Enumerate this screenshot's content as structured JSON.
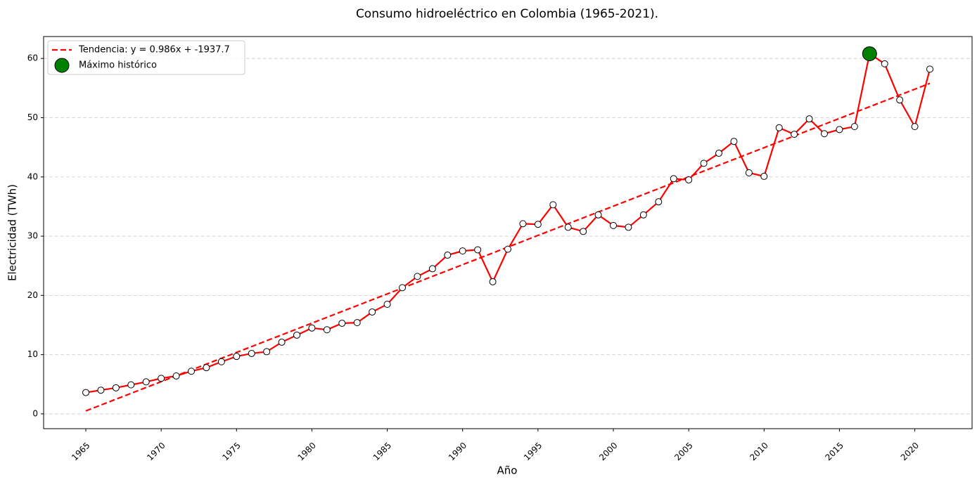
{
  "chart_data": {
    "type": "line",
    "title": "Consumo hidroeléctrico en Colombia (1965-2021).",
    "xlabel": "Año",
    "ylabel": "Electricidad (TWh)",
    "x": [
      1965,
      1966,
      1967,
      1968,
      1969,
      1970,
      1971,
      1972,
      1973,
      1974,
      1975,
      1976,
      1977,
      1978,
      1979,
      1980,
      1981,
      1982,
      1983,
      1984,
      1985,
      1986,
      1987,
      1988,
      1989,
      1990,
      1991,
      1992,
      1993,
      1994,
      1995,
      1996,
      1997,
      1998,
      1999,
      2000,
      2001,
      2002,
      2003,
      2004,
      2005,
      2006,
      2007,
      2008,
      2009,
      2010,
      2011,
      2012,
      2013,
      2014,
      2015,
      2016,
      2017,
      2018,
      2019,
      2020,
      2021
    ],
    "series": [
      {
        "color": "#ff0000",
        "values": [
          3.6,
          4.0,
          4.4,
          4.9,
          5.4,
          6.0,
          6.4,
          7.2,
          7.8,
          8.8,
          9.7,
          10.2,
          10.5,
          12.1,
          13.3,
          14.5,
          14.2,
          15.3,
          15.4,
          17.2,
          18.5,
          21.3,
          23.2,
          24.5,
          26.8,
          27.5,
          27.7,
          22.3,
          27.8,
          32.1,
          32.0,
          35.3,
          31.5,
          30.8,
          33.6,
          31.8,
          31.5,
          33.6,
          35.8,
          39.7,
          39.5,
          42.3,
          44.0,
          46.0,
          40.7,
          40.1,
          48.3,
          47.2,
          49.8,
          47.3,
          48.0,
          48.5,
          60.8,
          59.1,
          53.0,
          48.5,
          58.2
        ]
      }
    ],
    "trend": {
      "name": "Tendencia: y = 0.986x + -1937.7",
      "color": "#ff0000",
      "x": [
        1965,
        2021
      ],
      "values": [
        0.5,
        55.8
      ]
    },
    "maximum": {
      "name": "Máximo histórico",
      "color": "#008000",
      "x": 2017,
      "value": 60.8
    },
    "xlim": [
      1962.2,
      2023.8
    ],
    "ylim": [
      -2.5,
      63.7
    ],
    "xticks": [
      1965,
      1970,
      1975,
      1980,
      1985,
      1990,
      1995,
      2000,
      2005,
      2010,
      2015,
      2020
    ],
    "yticks": [
      0,
      10,
      20,
      30,
      40,
      50,
      60
    ],
    "grid": true,
    "legend": "upper-left"
  }
}
